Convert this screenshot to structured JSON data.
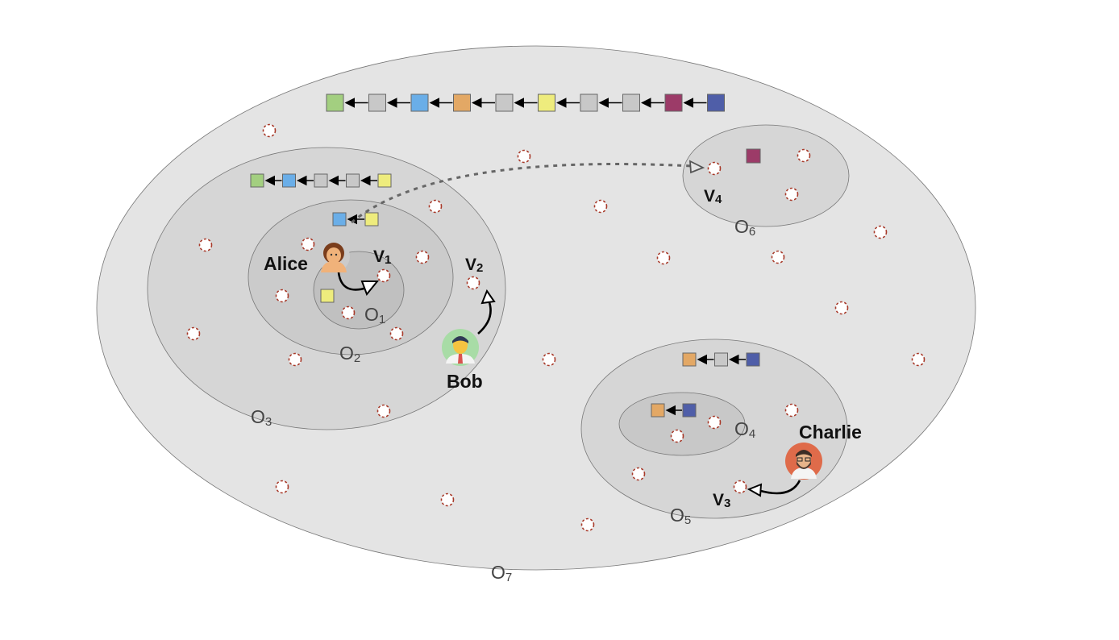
{
  "regions": [
    {
      "id": "O1",
      "letter": "O",
      "sub": "1"
    },
    {
      "id": "O2",
      "letter": "O",
      "sub": "2"
    },
    {
      "id": "O3",
      "letter": "O",
      "sub": "3"
    },
    {
      "id": "O4",
      "letter": "O",
      "sub": "4"
    },
    {
      "id": "O5",
      "letter": "O",
      "sub": "5"
    },
    {
      "id": "O6",
      "letter": "O",
      "sub": "6"
    },
    {
      "id": "O7",
      "letter": "O",
      "sub": "7"
    }
  ],
  "people": [
    {
      "id": "alice",
      "name": "Alice",
      "icon": "woman-avatar-icon"
    },
    {
      "id": "bob",
      "name": "Bob",
      "icon": "man-avatar-icon"
    },
    {
      "id": "charlie",
      "name": "Charlie",
      "icon": "bearded-man-avatar-icon"
    }
  ],
  "votes": [
    {
      "id": "v1",
      "letter": "V",
      "sub": "1"
    },
    {
      "id": "v2",
      "letter": "V",
      "sub": "2"
    },
    {
      "id": "v3",
      "letter": "V",
      "sub": "3"
    },
    {
      "id": "v4",
      "letter": "V",
      "sub": "4"
    }
  ],
  "colors": {
    "green": "#a3cf80",
    "gray": "#c8c8c8",
    "blue": "#6aaee8",
    "orange": "#e3a865",
    "yellow": "#eeec7d",
    "maroon": "#9c3b68",
    "navy": "#4f5ea8",
    "node_border": "#a83a2a",
    "region_outer": "#e4e4e4",
    "region_mid": "#d3d3d3",
    "region_inner": "#c4c4c4"
  },
  "chains": {
    "main": [
      "green",
      "gray",
      "blue",
      "orange",
      "gray",
      "yellow",
      "gray",
      "gray",
      "maroon",
      "navy"
    ],
    "o3": [
      "green",
      "blue",
      "gray",
      "gray",
      "yellow"
    ],
    "o2": [
      "blue",
      "yellow"
    ],
    "o5": [
      "orange",
      "gray",
      "navy"
    ],
    "o4": [
      "orange",
      "navy"
    ]
  },
  "standalone_blocks": [
    "yellow",
    "maroon"
  ]
}
